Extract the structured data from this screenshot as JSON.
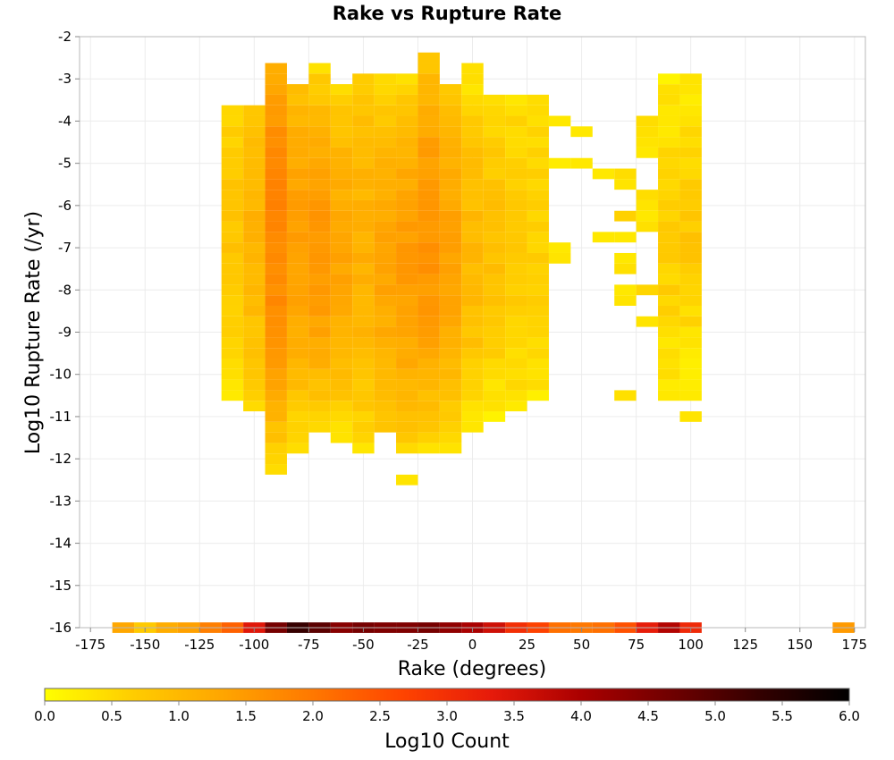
{
  "chart_data": {
    "type": "heatmap",
    "title": "Rake vs Rupture Rate",
    "xlabel": "Rake (degrees)",
    "ylabel": "Log10 Rupture Rate (/yr)",
    "xlim": [
      -180,
      180
    ],
    "ylim": [
      -16,
      -2
    ],
    "x_ticks": [
      "-175",
      "-150",
      "-125",
      "-100",
      "-75",
      "-50",
      "-25",
      "0",
      "25",
      "50",
      "75",
      "100",
      "125",
      "150",
      "175"
    ],
    "y_ticks": [
      "-2",
      "-3",
      "-4",
      "-5",
      "-6",
      "-7",
      "-8",
      "-9",
      "-10",
      "-11",
      "-12",
      "-13",
      "-14",
      "-15",
      "-16"
    ],
    "x_bin_width": 10,
    "y_bin_width": 0.25,
    "colorbar": {
      "label": "Log10 Count",
      "min": 0.0,
      "max": 6.0,
      "ticks": [
        "0.0",
        "0.5",
        "1.0",
        "1.5",
        "2.0",
        "2.5",
        "3.0",
        "3.5",
        "4.0",
        "4.5",
        "5.0",
        "5.5",
        "6.0"
      ],
      "colors": [
        "#ffff00",
        "#ffcc00",
        "#ffa500",
        "#ff7800",
        "#ff4400",
        "#e61a0a",
        "#aa0000",
        "#700000",
        "#330000",
        "#000000"
      ]
    },
    "columns": [
      {
        "x": -110,
        "ymin": -10.5,
        "ymax": -3.75,
        "center": -6.5,
        "peak": 0.8,
        "edge": 0.3
      },
      {
        "x": -100,
        "ymin": -10.75,
        "ymax": -3.75,
        "center": -6.5,
        "peak": 1.05,
        "edge": 0.45
      },
      {
        "x": -90,
        "ymin": -12.25,
        "ymax": -2.75,
        "center": -6.5,
        "peak": 1.8,
        "edge": 0.5
      },
      {
        "x": -80,
        "ymin": -11.75,
        "ymax": -3.25,
        "center": -6.75,
        "peak": 1.4,
        "edge": 0.35
      },
      {
        "x": -70,
        "ymin": -11.25,
        "ymax": -2.75,
        "center": -7.0,
        "peak": 1.55,
        "edge": 0.5
      },
      {
        "x": -60,
        "ymin": -11.5,
        "ymax": -3.25,
        "center": -7.25,
        "peak": 1.3,
        "edge": 0.4
      },
      {
        "x": -50,
        "ymin": -11.75,
        "ymax": -3.0,
        "center": -7.0,
        "peak": 1.15,
        "edge": 0.4
      },
      {
        "x": -40,
        "ymin": -11.25,
        "ymax": -3.0,
        "center": -7.5,
        "peak": 1.3,
        "edge": 0.45
      },
      {
        "x": -30,
        "ymin": -11.75,
        "ymax": -3.0,
        "center": -7.5,
        "peak": 1.45,
        "edge": 0.45
      },
      {
        "x": -20,
        "ymin": -11.75,
        "ymax": -2.5,
        "center": -6.75,
        "peak": 1.6,
        "edge": 0.45
      },
      {
        "x": -10,
        "ymin": -11.75,
        "ymax": -3.25,
        "center": -7.0,
        "peak": 1.35,
        "edge": 0.45
      },
      {
        "x": 0,
        "ymin": -11.25,
        "ymax": -2.75,
        "center": -7.0,
        "peak": 1.0,
        "edge": 0.3
      },
      {
        "x": 10,
        "ymin": -11.0,
        "ymax": -3.5,
        "center": -7.0,
        "peak": 0.85,
        "edge": 0.25
      },
      {
        "x": 20,
        "ymin": -10.75,
        "ymax": -3.5,
        "center": -6.75,
        "peak": 0.7,
        "edge": 0.3
      },
      {
        "x": 30,
        "ymin": -10.5,
        "ymax": -3.5,
        "center": -6.5,
        "peak": 0.6,
        "edge": 0.3
      }
    ],
    "cells": [
      {
        "x": 40,
        "y": -4.0,
        "v": 0.3
      },
      {
        "x": 40,
        "y": -5.0,
        "v": 0.25
      },
      {
        "x": 40,
        "y": -7.0,
        "v": 0.3
      },
      {
        "x": 40,
        "y": -7.25,
        "v": 0.35
      },
      {
        "x": 50,
        "y": -5.0,
        "v": 0.3
      },
      {
        "x": 50,
        "y": -4.25,
        "v": 0.3
      },
      {
        "x": 60,
        "y": -6.75,
        "v": 0.3
      },
      {
        "x": 60,
        "y": -5.25,
        "v": 0.3
      },
      {
        "x": 70,
        "y": -5.25,
        "v": 0.45
      },
      {
        "x": 70,
        "y": -5.5,
        "v": 0.35
      },
      {
        "x": 70,
        "y": -6.25,
        "v": 0.6
      },
      {
        "x": 70,
        "y": -6.75,
        "v": 0.3
      },
      {
        "x": 70,
        "y": -7.25,
        "v": 0.3
      },
      {
        "x": 70,
        "y": -7.5,
        "v": 0.4
      },
      {
        "x": 70,
        "y": -8.0,
        "v": 0.3
      },
      {
        "x": 70,
        "y": -8.25,
        "v": 0.35
      },
      {
        "x": 70,
        "y": -10.5,
        "v": 0.4
      },
      {
        "x": 80,
        "y": -4.0,
        "v": 0.45
      },
      {
        "x": 80,
        "y": -4.25,
        "v": 0.4
      },
      {
        "x": 80,
        "y": -4.5,
        "v": 0.35
      },
      {
        "x": 80,
        "y": -4.75,
        "v": 0.3
      },
      {
        "x": 80,
        "y": -5.75,
        "v": 0.45
      },
      {
        "x": 80,
        "y": -6.0,
        "v": 0.35
      },
      {
        "x": 80,
        "y": -6.25,
        "v": 0.3
      },
      {
        "x": 80,
        "y": -6.5,
        "v": 0.4
      },
      {
        "x": 80,
        "y": -8.0,
        "v": 0.55
      },
      {
        "x": 80,
        "y": -8.75,
        "v": 0.35
      }
    ],
    "right_cluster": {
      "x": [
        90,
        100
      ],
      "ymin": -10.5,
      "ymax": -3.0,
      "peak": 0.75,
      "edge": 0.25
    },
    "bottom_row": {
      "y": -16.0,
      "bins": [
        {
          "x": -160,
          "v": 1.3
        },
        {
          "x": -150,
          "v": 0.7
        },
        {
          "x": -140,
          "v": 1.2
        },
        {
          "x": -130,
          "v": 1.4
        },
        {
          "x": -120,
          "v": 1.9
        },
        {
          "x": -110,
          "v": 2.3
        },
        {
          "x": -100,
          "v": 3.4
        },
        {
          "x": -90,
          "v": 4.6
        },
        {
          "x": -80,
          "v": 5.3
        },
        {
          "x": -70,
          "v": 4.9
        },
        {
          "x": -60,
          "v": 4.4
        },
        {
          "x": -50,
          "v": 4.6
        },
        {
          "x": -40,
          "v": 4.5
        },
        {
          "x": -30,
          "v": 4.5
        },
        {
          "x": -20,
          "v": 4.6
        },
        {
          "x": -10,
          "v": 4.3
        },
        {
          "x": 0,
          "v": 4.0
        },
        {
          "x": 10,
          "v": 3.6
        },
        {
          "x": 20,
          "v": 3.0
        },
        {
          "x": 30,
          "v": 2.7
        },
        {
          "x": 40,
          "v": 2.1
        },
        {
          "x": 50,
          "v": 2.0
        },
        {
          "x": 60,
          "v": 2.1
        },
        {
          "x": 70,
          "v": 2.5
        },
        {
          "x": 80,
          "v": 3.3
        },
        {
          "x": 90,
          "v": 3.9
        },
        {
          "x": 100,
          "v": 3.1
        },
        {
          "x": 170,
          "v": 1.5
        }
      ]
    },
    "outliers": [
      {
        "x": -30,
        "y": -12.5,
        "v": 0.35
      },
      {
        "x": 100,
        "y": -11.0,
        "v": 0.35
      }
    ],
    "grid": true
  }
}
